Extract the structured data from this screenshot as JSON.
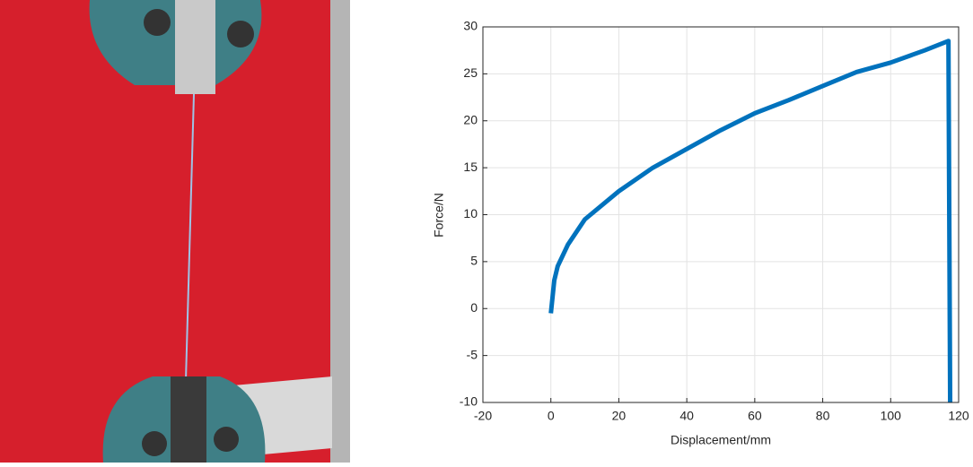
{
  "chart_data": {
    "type": "line",
    "xlabel": "Displacement/mm",
    "ylabel": "Force/N",
    "x": [
      0,
      1,
      2,
      5,
      10,
      20,
      30,
      40,
      50,
      60,
      70,
      80,
      90,
      100,
      110,
      117,
      117.5
    ],
    "series": [
      {
        "color": "#0072bd",
        "values": [
          -0.5,
          3,
          4.5,
          6.8,
          9.5,
          12.5,
          15,
          17,
          19,
          20.8,
          22.2,
          23.7,
          25.2,
          26.2,
          27.5,
          28.5,
          -10
        ]
      }
    ],
    "xlim": [
      -20,
      120
    ],
    "ylim": [
      -10,
      30
    ],
    "xticks": [
      -20,
      0,
      20,
      40,
      60,
      80,
      100,
      120
    ],
    "yticks": [
      -10,
      -5,
      0,
      5,
      10,
      15,
      20,
      25,
      30
    ],
    "grid": true
  }
}
